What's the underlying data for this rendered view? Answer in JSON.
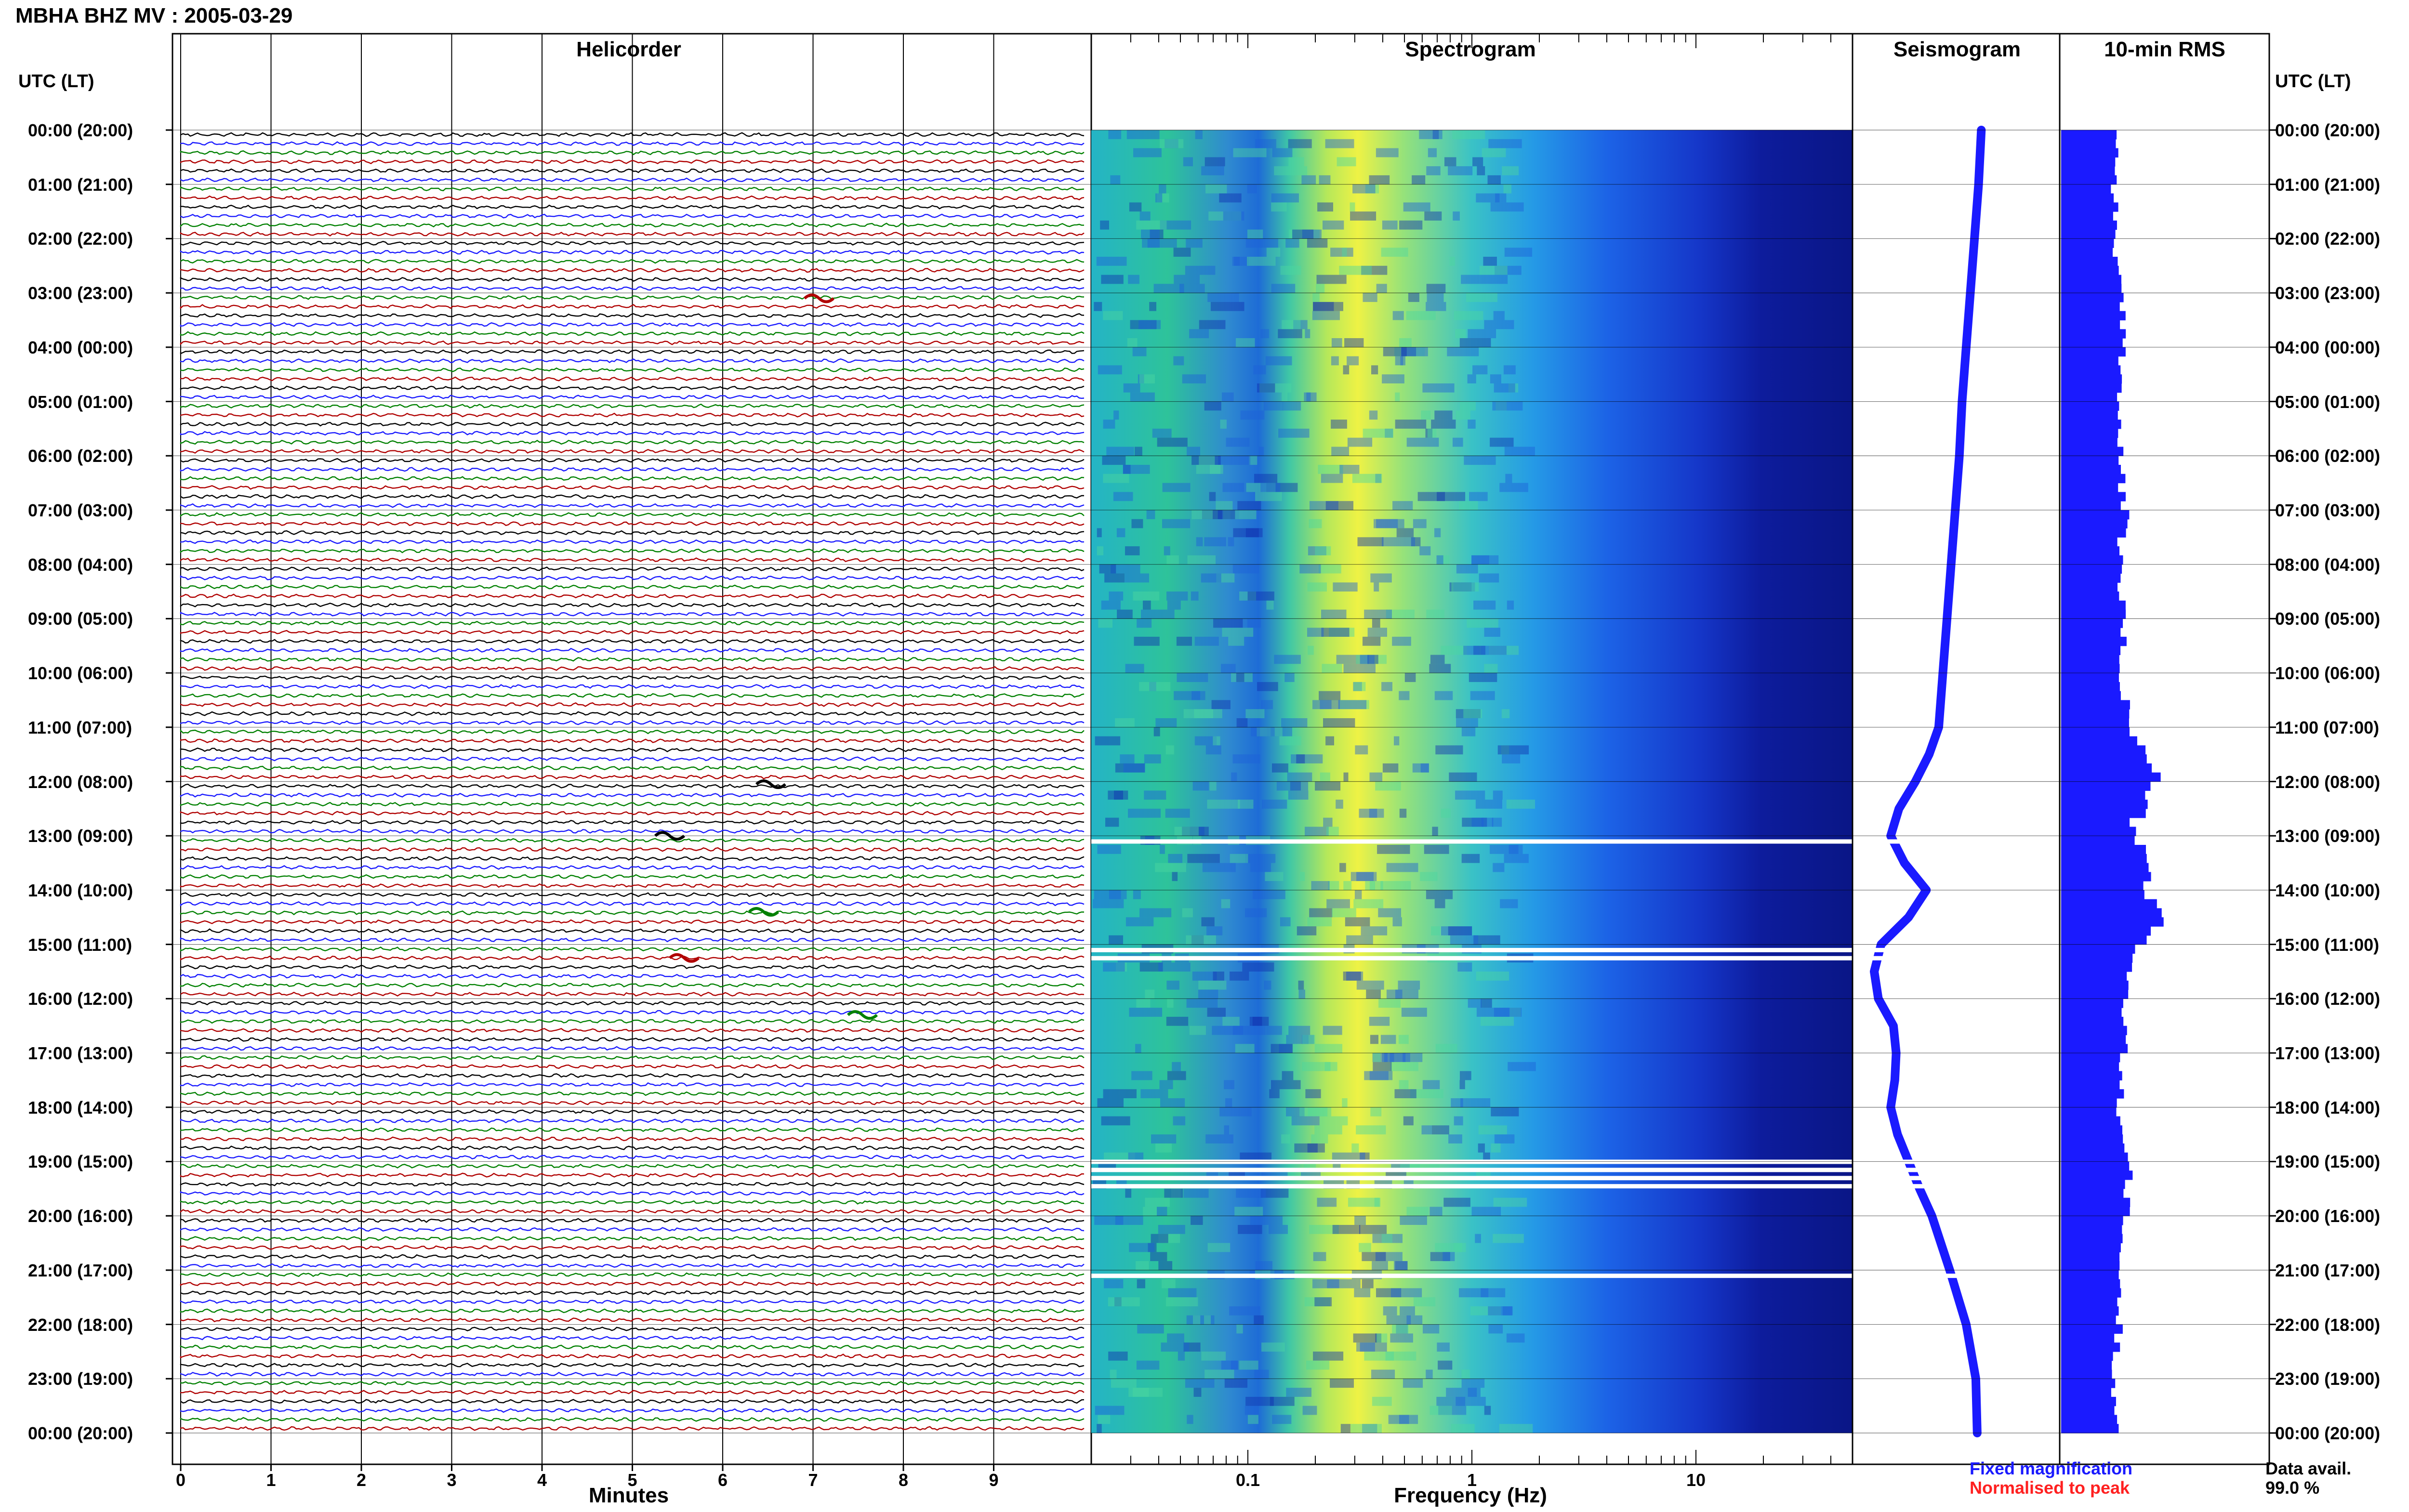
{
  "header": {
    "title": "MBHA BHZ MV : 2005-03-29"
  },
  "panels": {
    "helicorder": "Helicorder",
    "spectrogram": "Spectrogram",
    "seismogram": "Seismogram",
    "rms": "10-min RMS"
  },
  "axis_labels": {
    "left_time": "UTC (LT)",
    "right_time": "UTC (LT)",
    "minutes": "Minutes",
    "frequency": "Frequency (Hz)"
  },
  "legend": {
    "fixed": "Fixed magnification",
    "normalised": "Normalised to peak",
    "fixed_color": "#1a1aff",
    "normalised_color": "#ff2020"
  },
  "availability": {
    "label": "Data avail.",
    "value": "99.0 %"
  },
  "colors": {
    "trace_cycle": [
      "#000000",
      "#1a1aff",
      "#008000",
      "#b00000"
    ],
    "seismogram": "#1a1aff",
    "rms": "#1a1aff",
    "spec_low": "#0a1a8c",
    "spec_mid": "#1e9be6",
    "spec_high": "#f0f040"
  },
  "chart_data": {
    "type": "heatmap",
    "time_ticks": [
      "00:00 (20:00)",
      "01:00 (21:00)",
      "02:00 (22:00)",
      "03:00 (23:00)",
      "04:00 (00:00)",
      "05:00 (01:00)",
      "06:00 (02:00)",
      "07:00 (03:00)",
      "08:00 (04:00)",
      "09:00 (05:00)",
      "10:00 (06:00)",
      "11:00 (07:00)",
      "12:00 (08:00)",
      "13:00 (09:00)",
      "14:00 (10:00)",
      "15:00 (11:00)",
      "16:00 (12:00)",
      "17:00 (13:00)",
      "18:00 (14:00)",
      "19:00 (15:00)",
      "20:00 (16:00)",
      "21:00 (17:00)",
      "22:00 (18:00)",
      "23:00 (19:00)",
      "00:00 (20:00)"
    ],
    "helicorder": {
      "x_ticks": [
        "0",
        "1",
        "2",
        "3",
        "4",
        "5",
        "6",
        "7",
        "8",
        "9"
      ],
      "xlim": [
        0,
        10
      ],
      "trace_count": 144,
      "minutes_per_trace": 10
    },
    "spectrogram": {
      "scale": "log",
      "xlim": [
        0.02,
        50
      ],
      "x_ticks": [
        "0.1",
        "1",
        "10"
      ],
      "gaps_utc_hours": [
        13.1,
        15.1,
        15.25,
        19.0,
        19.15,
        19.3,
        19.45,
        21.1
      ]
    },
    "seismogram": {
      "hours": [
        0,
        1,
        2,
        3,
        4,
        5,
        6,
        7,
        8,
        9,
        10,
        11,
        11.5,
        12,
        12.5,
        13,
        13.5,
        14,
        14.5,
        15,
        15.5,
        16,
        16.5,
        17,
        17.5,
        18,
        18.5,
        19,
        19.5,
        20,
        21,
        22,
        23,
        24
      ],
      "values": [
        0.78,
        0.76,
        0.73,
        0.7,
        0.67,
        0.64,
        0.62,
        0.59,
        0.56,
        0.53,
        0.5,
        0.47,
        0.4,
        0.3,
        0.18,
        0.12,
        0.22,
        0.38,
        0.25,
        0.05,
        0.0,
        0.03,
        0.14,
        0.16,
        0.15,
        0.12,
        0.17,
        0.25,
        0.33,
        0.42,
        0.55,
        0.67,
        0.74,
        0.75
      ]
    },
    "rms_10min": {
      "hours": [
        0,
        1,
        2,
        3,
        4,
        5,
        6,
        7,
        8,
        9,
        10,
        11,
        12,
        12.5,
        13,
        13.5,
        14,
        14.5,
        15,
        15.5,
        16,
        17,
        18,
        19,
        20,
        21,
        22,
        23,
        24
      ],
      "values": [
        0.3,
        0.28,
        0.28,
        0.3,
        0.33,
        0.3,
        0.3,
        0.33,
        0.3,
        0.32,
        0.31,
        0.36,
        0.5,
        0.42,
        0.35,
        0.48,
        0.4,
        0.55,
        0.42,
        0.35,
        0.33,
        0.32,
        0.3,
        0.35,
        0.33,
        0.3,
        0.3,
        0.28,
        0.28
      ]
    }
  }
}
